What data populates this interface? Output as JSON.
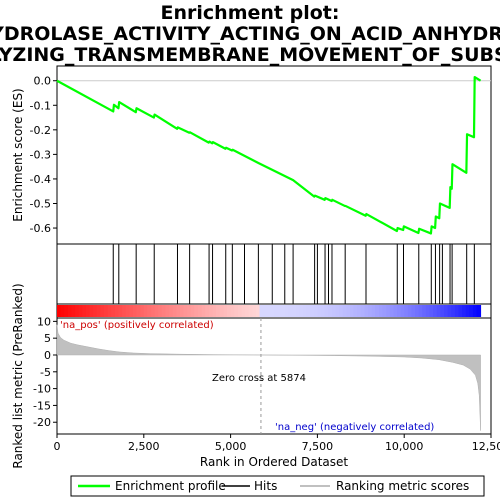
{
  "chart_data": {
    "type": "line",
    "title_line1": "Enrichment plot:",
    "title_line2": "HYDROLASE_ACTIVITY_ACTING_ON_ACID_ANHYDRID",
    "title_line3": "ATALYZING_TRANSMEMBRANE_MOVEMENT_OF_SUBSTAN",
    "es_ylabel": "Enrichment score (ES)",
    "rank_ylabel": "Ranked list metric (PreRanked)",
    "xlabel": "Rank in Ordered Dataset",
    "xlim": [
      0,
      12500
    ],
    "es_ylim": [
      -0.665,
      0.06
    ],
    "rank_ylim": [
      -23.5,
      11
    ],
    "x_ticks": [
      0,
      2500,
      5000,
      7500,
      10000,
      12500
    ],
    "x_tick_labels": [
      "0",
      "2,500",
      "5,000",
      "7,500",
      "10,000",
      "12,500"
    ],
    "es_ticks": [
      0.0,
      -0.1,
      -0.2,
      -0.3,
      -0.4,
      -0.5,
      -0.6
    ],
    "es_tick_labels": [
      "0.0",
      "-0.1",
      "-0.2",
      "-0.3",
      "-0.4",
      "-0.5",
      "-0.6"
    ],
    "rank_ticks": [
      10,
      5,
      0,
      -5,
      -10,
      -15,
      -20
    ],
    "rank_tick_labels": [
      "10",
      "5",
      "0",
      "-5",
      "-10",
      "-15",
      "-20"
    ],
    "zero_cross_rank": 5874,
    "zero_cross_label": "Zero cross at 5874",
    "pos_label": "'na_pos' (positively correlated)",
    "neg_label": "'na_neg' (negatively correlated)",
    "legend": [
      "Enrichment profile",
      "Hits",
      "Ranking metric scores"
    ],
    "colors": {
      "profile": "#00ff00",
      "hits": "#000000",
      "metric": "#c0c0c0",
      "pos_text": "#cc0000",
      "neg_text": "#0000cc"
    },
    "hits": [
      1620,
      1780,
      2280,
      2800,
      3470,
      3820,
      4380,
      4480,
      4860,
      5050,
      5400,
      5800,
      6200,
      6560,
      6800,
      7420,
      7500,
      7720,
      7820,
      7920,
      8300,
      8900,
      9800,
      9980,
      10420,
      10780,
      10900,
      11020,
      11100,
      11320,
      11380,
      11800,
      12020
    ],
    "es_profile": [
      [
        0,
        0.0
      ],
      [
        1620,
        -0.125
      ],
      [
        1640,
        -0.098
      ],
      [
        1770,
        -0.112
      ],
      [
        1790,
        -0.087
      ],
      [
        2270,
        -0.128
      ],
      [
        2290,
        -0.112
      ],
      [
        2790,
        -0.15
      ],
      [
        2810,
        -0.138
      ],
      [
        3460,
        -0.196
      ],
      [
        3480,
        -0.19
      ],
      [
        3810,
        -0.212
      ],
      [
        3830,
        -0.21
      ],
      [
        4370,
        -0.252
      ],
      [
        4390,
        -0.248
      ],
      [
        4470,
        -0.255
      ],
      [
        4490,
        -0.25
      ],
      [
        4850,
        -0.277
      ],
      [
        4870,
        -0.273
      ],
      [
        5040,
        -0.284
      ],
      [
        5060,
        -0.281
      ],
      [
        5800,
        -0.335
      ],
      [
        6800,
        -0.405
      ],
      [
        7410,
        -0.472
      ],
      [
        7430,
        -0.468
      ],
      [
        7710,
        -0.485
      ],
      [
        7730,
        -0.478
      ],
      [
        7910,
        -0.49
      ],
      [
        7930,
        -0.485
      ],
      [
        8290,
        -0.51
      ],
      [
        8310,
        -0.51
      ],
      [
        8890,
        -0.55
      ],
      [
        8910,
        -0.543
      ],
      [
        9790,
        -0.612
      ],
      [
        9810,
        -0.6
      ],
      [
        9970,
        -0.608
      ],
      [
        9990,
        -0.593
      ],
      [
        10410,
        -0.62
      ],
      [
        10430,
        -0.603
      ],
      [
        10770,
        -0.622
      ],
      [
        10790,
        -0.593
      ],
      [
        10890,
        -0.6
      ],
      [
        10910,
        -0.553
      ],
      [
        11010,
        -0.56
      ],
      [
        11030,
        -0.5
      ],
      [
        11310,
        -0.518
      ],
      [
        11330,
        -0.433
      ],
      [
        11370,
        -0.44
      ],
      [
        11390,
        -0.34
      ],
      [
        11790,
        -0.375
      ],
      [
        11810,
        -0.218
      ],
      [
        12010,
        -0.23
      ],
      [
        12030,
        0.015
      ],
      [
        12200,
        0.0
      ]
    ],
    "metric_curve": [
      [
        0,
        9.0
      ],
      [
        30,
        6.5
      ],
      [
        100,
        5.2
      ],
      [
        200,
        4.4
      ],
      [
        400,
        3.5
      ],
      [
        600,
        3.0
      ],
      [
        900,
        2.4
      ],
      [
        1200,
        1.8
      ],
      [
        1500,
        1.3
      ],
      [
        1800,
        0.9
      ],
      [
        2200,
        0.6
      ],
      [
        2700,
        0.4
      ],
      [
        3500,
        0.25
      ],
      [
        4500,
        0.12
      ],
      [
        5874,
        0.0
      ],
      [
        7000,
        -0.1
      ],
      [
        8000,
        -0.2
      ],
      [
        9000,
        -0.35
      ],
      [
        10000,
        -0.6
      ],
      [
        10500,
        -0.9
      ],
      [
        11000,
        -1.4
      ],
      [
        11400,
        -2.2
      ],
      [
        11700,
        -3.0
      ],
      [
        11900,
        -4.2
      ],
      [
        12050,
        -6.0
      ],
      [
        12120,
        -8.5
      ],
      [
        12160,
        -12.0
      ],
      [
        12200,
        -22.5
      ]
    ]
  }
}
